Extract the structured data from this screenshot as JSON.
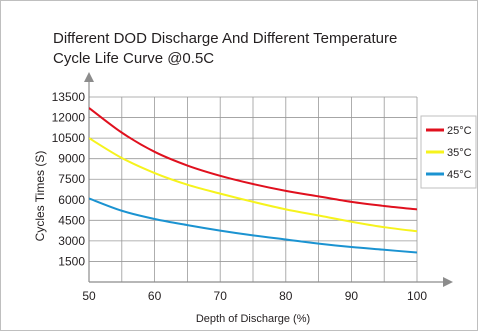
{
  "chart_data": {
    "type": "line",
    "title": "Different DOD Discharge And Different Temperature",
    "subtitle": "Cycle Life Curve @0.5C",
    "xlabel": "Depth of Discharge  (%)",
    "ylabel": "Cycles Times (S)",
    "xlim": [
      50,
      100
    ],
    "ylim": [
      0,
      13500
    ],
    "x_ticks": [
      50,
      60,
      70,
      80,
      90,
      100
    ],
    "y_ticks": [
      1500,
      3000,
      4500,
      6000,
      7500,
      9000,
      10500,
      12000,
      13500
    ],
    "grid": true,
    "legend_position": "right",
    "x": [
      50,
      55,
      60,
      65,
      70,
      75,
      80,
      85,
      90,
      95,
      100
    ],
    "series": [
      {
        "name": "25°C",
        "color": "#e0101e",
        "values": [
          12700,
          10900,
          9500,
          8500,
          7750,
          7150,
          6650,
          6250,
          5850,
          5550,
          5300
        ]
      },
      {
        "name": "35°C",
        "color": "#f6f31d",
        "values": [
          10500,
          9050,
          7950,
          7100,
          6450,
          5850,
          5300,
          4850,
          4400,
          4000,
          3700
        ]
      },
      {
        "name": "45°C",
        "color": "#1b93d1",
        "values": [
          6100,
          5200,
          4600,
          4150,
          3750,
          3400,
          3100,
          2800,
          2550,
          2350,
          2150
        ]
      }
    ]
  }
}
